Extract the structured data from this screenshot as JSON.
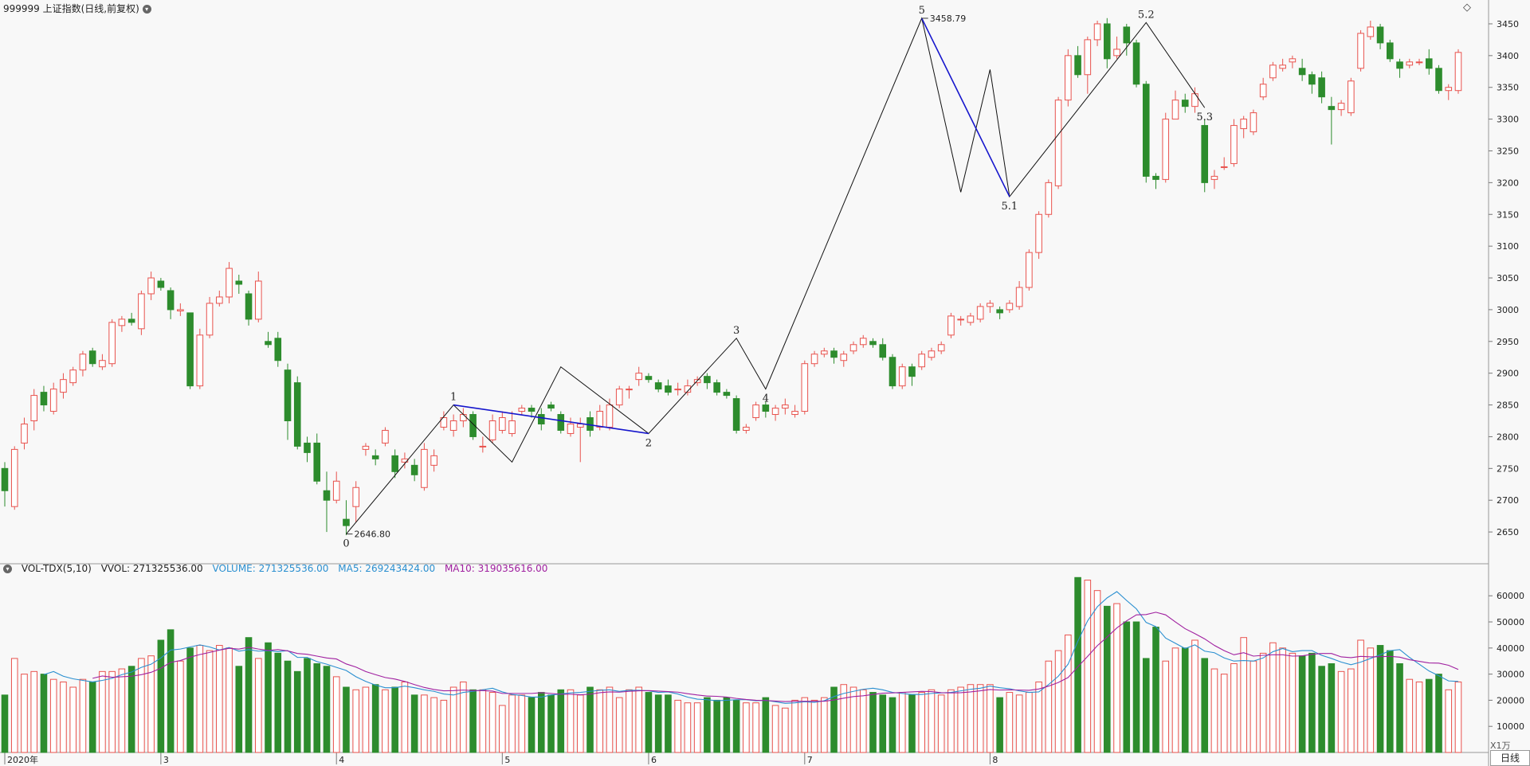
{
  "header": {
    "title": "999999 上证指数(日线,前复权)",
    "toggle_icon": "chevron-down-icon",
    "top_right_icon": "diamond-icon"
  },
  "volume_header": {
    "name": "VOL-TDX(5,10)",
    "vvol": "VVOL: 271325536.00",
    "volume": "VOLUME: 271325536.00",
    "ma5": "MA5: 269243424.00",
    "ma10": "MA10: 319035616.00"
  },
  "bottom": {
    "period_label": "日线",
    "unit_label": "X1万"
  },
  "colors": {
    "up": "#e8524d",
    "down": "#2d8c2d",
    "wave": "#111111",
    "wave_blue": "#1515cc",
    "ma5": "#2a8fd0",
    "ma10": "#a020a0"
  },
  "chart_data": [
    {
      "type": "candlestick",
      "title": "999999 上证指数(日线,前复权)",
      "ylim": [
        2610,
        3470
      ],
      "y_ticks": [
        2650,
        2700,
        2750,
        2800,
        2850,
        2900,
        2950,
        3000,
        3050,
        3100,
        3150,
        3200,
        3250,
        3300,
        3350,
        3400,
        3450
      ],
      "x_tick_labels": [
        {
          "index": 0,
          "label": "2020年"
        },
        {
          "index": 16,
          "label": "3"
        },
        {
          "index": 34,
          "label": "4"
        },
        {
          "index": 51,
          "label": "5"
        },
        {
          "index": 66,
          "label": "6"
        },
        {
          "index": 82,
          "label": "7"
        },
        {
          "index": 101,
          "label": "8"
        }
      ],
      "candles": [
        [
          2750,
          2715,
          2760,
          2690
        ],
        [
          2690,
          2780,
          2785,
          2685
        ],
        [
          2790,
          2820,
          2830,
          2780
        ],
        [
          2825,
          2865,
          2875,
          2810
        ],
        [
          2870,
          2850,
          2880,
          2840
        ],
        [
          2840,
          2875,
          2885,
          2835
        ],
        [
          2870,
          2890,
          2900,
          2860
        ],
        [
          2885,
          2905,
          2910,
          2880
        ],
        [
          2905,
          2930,
          2935,
          2895
        ],
        [
          2935,
          2915,
          2940,
          2910
        ],
        [
          2910,
          2920,
          2930,
          2905
        ],
        [
          2915,
          2980,
          2985,
          2910
        ],
        [
          2975,
          2985,
          2990,
          2965
        ],
        [
          2985,
          2980,
          2995,
          2975
        ],
        [
          2970,
          3025,
          3030,
          2960
        ],
        [
          3025,
          3050,
          3060,
          3015
        ],
        [
          3045,
          3035,
          3050,
          3030
        ],
        [
          3030,
          3000,
          3035,
          2985
        ],
        [
          2998,
          3000,
          3010,
          2990
        ],
        [
          2995,
          2880,
          2995,
          2875
        ],
        [
          2880,
          2960,
          2970,
          2875
        ],
        [
          2960,
          3010,
          3020,
          2955
        ],
        [
          3010,
          3020,
          3030,
          3005
        ],
        [
          3020,
          3065,
          3075,
          3010
        ],
        [
          3045,
          3040,
          3055,
          3025
        ],
        [
          3025,
          2985,
          3030,
          2975
        ],
        [
          2985,
          3045,
          3060,
          2980
        ],
        [
          2950,
          2945,
          2965,
          2940
        ],
        [
          2955,
          2920,
          2965,
          2910
        ],
        [
          2905,
          2825,
          2915,
          2795
        ],
        [
          2885,
          2785,
          2895,
          2780
        ],
        [
          2790,
          2775,
          2800,
          2760
        ],
        [
          2790,
          2730,
          2805,
          2725
        ],
        [
          2715,
          2700,
          2745,
          2650
        ],
        [
          2700,
          2730,
          2745,
          2695
        ],
        [
          2670,
          2660,
          2700,
          2645
        ],
        [
          2690,
          2720,
          2730,
          2665
        ],
        [
          2780,
          2785,
          2790,
          2770
        ],
        [
          2770,
          2765,
          2780,
          2755
        ],
        [
          2790,
          2810,
          2815,
          2785
        ],
        [
          2770,
          2745,
          2780,
          2735
        ],
        [
          2760,
          2765,
          2775,
          2750
        ],
        [
          2755,
          2740,
          2765,
          2730
        ],
        [
          2720,
          2780,
          2790,
          2715
        ],
        [
          2755,
          2770,
          2780,
          2745
        ],
        [
          2815,
          2830,
          2840,
          2810
        ],
        [
          2810,
          2825,
          2835,
          2800
        ],
        [
          2825,
          2835,
          2845,
          2815
        ],
        [
          2835,
          2800,
          2840,
          2795
        ],
        [
          2785,
          2785,
          2800,
          2775
        ],
        [
          2795,
          2825,
          2835,
          2790
        ],
        [
          2810,
          2830,
          2840,
          2805
        ],
        [
          2805,
          2825,
          2840,
          2800
        ],
        [
          2840,
          2845,
          2850,
          2835
        ],
        [
          2845,
          2840,
          2850,
          2830
        ],
        [
          2835,
          2820,
          2845,
          2810
        ],
        [
          2850,
          2845,
          2855,
          2840
        ],
        [
          2835,
          2810,
          2840,
          2805
        ],
        [
          2805,
          2820,
          2830,
          2800
        ],
        [
          2815,
          2820,
          2830,
          2760
        ],
        [
          2830,
          2810,
          2840,
          2800
        ],
        [
          2815,
          2840,
          2850,
          2810
        ],
        [
          2815,
          2850,
          2860,
          2810
        ],
        [
          2850,
          2875,
          2880,
          2845
        ],
        [
          2875,
          2875,
          2880,
          2860
        ],
        [
          2890,
          2900,
          2910,
          2880
        ],
        [
          2895,
          2890,
          2900,
          2885
        ],
        [
          2885,
          2875,
          2890,
          2870
        ],
        [
          2880,
          2870,
          2890,
          2865
        ],
        [
          2875,
          2875,
          2885,
          2865
        ],
        [
          2870,
          2880,
          2890,
          2865
        ],
        [
          2885,
          2890,
          2895,
          2880
        ],
        [
          2895,
          2885,
          2900,
          2875
        ],
        [
          2885,
          2870,
          2890,
          2865
        ],
        [
          2870,
          2865,
          2875,
          2860
        ],
        [
          2860,
          2810,
          2865,
          2805
        ],
        [
          2810,
          2815,
          2820,
          2805
        ],
        [
          2830,
          2850,
          2855,
          2825
        ],
        [
          2850,
          2840,
          2855,
          2830
        ],
        [
          2835,
          2845,
          2850,
          2825
        ],
        [
          2845,
          2850,
          2860,
          2835
        ],
        [
          2835,
          2840,
          2850,
          2830
        ],
        [
          2840,
          2915,
          2920,
          2835
        ],
        [
          2915,
          2930,
          2935,
          2910
        ],
        [
          2930,
          2935,
          2940,
          2925
        ],
        [
          2935,
          2925,
          2940,
          2915
        ],
        [
          2920,
          2930,
          2935,
          2910
        ],
        [
          2935,
          2945,
          2950,
          2930
        ],
        [
          2945,
          2955,
          2960,
          2940
        ],
        [
          2950,
          2945,
          2955,
          2940
        ],
        [
          2945,
          2925,
          2955,
          2920
        ],
        [
          2925,
          2880,
          2930,
          2875
        ],
        [
          2880,
          2910,
          2915,
          2875
        ],
        [
          2910,
          2895,
          2915,
          2880
        ],
        [
          2910,
          2930,
          2935,
          2905
        ],
        [
          2925,
          2935,
          2940,
          2920
        ],
        [
          2935,
          2945,
          2950,
          2930
        ],
        [
          2960,
          2990,
          2995,
          2955
        ],
        [
          2985,
          2985,
          2990,
          2975
        ],
        [
          2980,
          2990,
          2995,
          2975
        ],
        [
          2985,
          3005,
          3010,
          2980
        ],
        [
          3005,
          3010,
          3015,
          2995
        ],
        [
          3000,
          2995,
          3005,
          2985
        ],
        [
          3000,
          3010,
          3015,
          2995
        ],
        [
          3005,
          3035,
          3045,
          3000
        ],
        [
          3035,
          3090,
          3095,
          3030
        ],
        [
          3090,
          3150,
          3155,
          3080
        ],
        [
          3150,
          3200,
          3205,
          3145
        ],
        [
          3195,
          3330,
          3335,
          3190
        ],
        [
          3330,
          3400,
          3410,
          3320
        ],
        [
          3400,
          3370,
          3415,
          3365
        ],
        [
          3370,
          3425,
          3430,
          3340
        ],
        [
          3425,
          3450,
          3455,
          3415
        ],
        [
          3450,
          3395,
          3459,
          3380
        ],
        [
          3400,
          3410,
          3430,
          3395
        ],
        [
          3445,
          3420,
          3450,
          3400
        ],
        [
          3420,
          3355,
          3425,
          3350
        ],
        [
          3355,
          3210,
          3360,
          3200
        ],
        [
          3210,
          3205,
          3215,
          3190
        ],
        [
          3205,
          3300,
          3310,
          3200
        ],
        [
          3300,
          3330,
          3345,
          3300
        ],
        [
          3330,
          3320,
          3340,
          3310
        ],
        [
          3320,
          3340,
          3350,
          3310
        ],
        [
          3290,
          3200,
          3300,
          3185
        ],
        [
          3205,
          3210,
          3220,
          3190
        ],
        [
          3225,
          3225,
          3240,
          3220
        ],
        [
          3230,
          3290,
          3300,
          3225
        ],
        [
          3285,
          3300,
          3305,
          3270
        ],
        [
          3280,
          3310,
          3315,
          3275
        ],
        [
          3335,
          3355,
          3365,
          3330
        ],
        [
          3365,
          3385,
          3390,
          3360
        ],
        [
          3380,
          3385,
          3395,
          3375
        ],
        [
          3390,
          3395,
          3400,
          3380
        ],
        [
          3380,
          3370,
          3395,
          3360
        ],
        [
          3370,
          3355,
          3375,
          3340
        ],
        [
          3365,
          3335,
          3375,
          3325
        ],
        [
          3320,
          3315,
          3335,
          3260
        ],
        [
          3315,
          3325,
          3330,
          3305
        ],
        [
          3310,
          3360,
          3365,
          3305
        ],
        [
          3380,
          3435,
          3440,
          3375
        ],
        [
          3430,
          3445,
          3455,
          3425
        ],
        [
          3445,
          3420,
          3450,
          3410
        ],
        [
          3420,
          3395,
          3425,
          3390
        ],
        [
          3390,
          3380,
          3395,
          3365
        ],
        [
          3385,
          3390,
          3395,
          3380
        ],
        [
          3390,
          3390,
          3395,
          3385
        ],
        [
          3395,
          3380,
          3410,
          3370
        ],
        [
          3380,
          3345,
          3385,
          3340
        ],
        [
          3345,
          3350,
          3355,
          3330
        ],
        [
          3345,
          3405,
          3410,
          3340
        ]
      ],
      "wave_points": [
        {
          "index": 35,
          "value": 2646.8,
          "label": "0"
        },
        {
          "index": 46,
          "value": 2850,
          "label": "1"
        },
        {
          "index": 52,
          "value": 2760,
          "label": ""
        },
        {
          "index": 57,
          "value": 2910,
          "label": ""
        },
        {
          "index": 66,
          "value": 2805,
          "label": "2"
        },
        {
          "index": 75,
          "value": 2955,
          "label": "3"
        },
        {
          "index": 78,
          "value": 2875,
          "label": "4"
        },
        {
          "index": 94,
          "value": 3458.79,
          "label": "5"
        },
        {
          "index": 98,
          "value": 3185,
          "label": ""
        },
        {
          "index": 101,
          "value": 3378,
          "label": ""
        },
        {
          "index": 103,
          "value": 3178,
          "label": "5.1"
        },
        {
          "index": 117,
          "value": 3452,
          "label": "5.2"
        },
        {
          "index": 123,
          "value": 3318,
          "label": "5.3"
        }
      ],
      "blue_lines": [
        {
          "from": {
            "index": 46,
            "value": 2850
          },
          "to": {
            "index": 66,
            "value": 2805
          }
        },
        {
          "from": {
            "index": 94,
            "value": 3458.79
          },
          "to": {
            "index": 103,
            "value": 3178
          }
        }
      ],
      "annotations": [
        {
          "index": 35,
          "value": 2646.8,
          "text": "2646.80"
        },
        {
          "index": 94,
          "value": 3458.79,
          "text": "3458.79"
        }
      ]
    },
    {
      "type": "bar",
      "title": "VOL-TDX(5,10)",
      "unit": "X1万",
      "ylim": [
        0,
        68000
      ],
      "y_ticks": [
        10000,
        20000,
        30000,
        40000,
        50000,
        60000
      ],
      "values": [
        22000,
        36000,
        30000,
        31000,
        30000,
        28000,
        27000,
        25000,
        28000,
        27000,
        31000,
        31000,
        32000,
        33000,
        36000,
        37000,
        43000,
        47000,
        35000,
        40000,
        41000,
        39000,
        41000,
        40000,
        33000,
        44000,
        36000,
        42000,
        38000,
        35000,
        31000,
        36000,
        34000,
        33000,
        29000,
        25000,
        24000,
        25000,
        26000,
        24000,
        25000,
        27000,
        22000,
        22000,
        21000,
        20000,
        25000,
        27000,
        24000,
        24000,
        23000,
        18000,
        22000,
        22000,
        21000,
        23000,
        22000,
        24000,
        24000,
        22000,
        25000,
        24000,
        25000,
        21000,
        24000,
        25000,
        23000,
        22000,
        22000,
        20000,
        19000,
        19000,
        21000,
        20000,
        21000,
        20000,
        19000,
        19000,
        21000,
        18000,
        17000,
        20000,
        21000,
        20000,
        21000,
        25000,
        26000,
        25000,
        24000,
        23000,
        22000,
        21000,
        23000,
        22000,
        23000,
        24000,
        22000,
        24000,
        25000,
        26000,
        26000,
        26000,
        21000,
        23000,
        22000,
        23000,
        27000,
        35000,
        39000,
        45000,
        67000,
        66000,
        62000,
        56000,
        57000,
        50000,
        50000,
        36000,
        48000,
        35000,
        40000,
        40000,
        43000,
        36000,
        32000,
        30000,
        34000,
        44000,
        35000,
        38000,
        42000,
        40000,
        38000,
        37000,
        38000,
        33000,
        34000,
        31000,
        32000,
        43000,
        40000,
        41000,
        39000,
        34000,
        28000,
        27000,
        28000,
        30000,
        24000,
        27000
      ],
      "ma5": [],
      "ma10": []
    }
  ]
}
